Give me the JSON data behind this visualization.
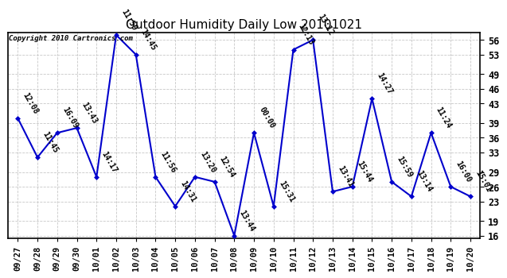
{
  "title": "Outdoor Humidity Daily Low 20101021",
  "copyright": "Copyright 2010 Cartronics.com",
  "x_labels": [
    "09/27",
    "09/28",
    "09/29",
    "09/30",
    "10/01",
    "10/02",
    "10/03",
    "10/04",
    "10/05",
    "10/06",
    "10/07",
    "10/08",
    "10/09",
    "10/10",
    "10/11",
    "10/12",
    "10/13",
    "10/14",
    "10/15",
    "10/16",
    "10/17",
    "10/18",
    "10/19",
    "10/20"
  ],
  "y_values": [
    40,
    32,
    37,
    38,
    28,
    57,
    53,
    28,
    22,
    28,
    27,
    16,
    37,
    22,
    54,
    56,
    25,
    26,
    44,
    27,
    24,
    37,
    26,
    24
  ],
  "time_labels": [
    "12:08",
    "11:45",
    "16:09",
    "13:43",
    "14:17",
    "11:59",
    "14:45",
    "11:56",
    "14:31",
    "13:20",
    "12:54",
    "13:44",
    "00:00",
    "15:31",
    "12:13",
    "13:12",
    "13:41",
    "15:44",
    "14:27",
    "15:59",
    "13:14",
    "11:24",
    "16:00",
    "15:01"
  ],
  "ylim_min": 16,
  "ylim_max": 57,
  "y_ticks": [
    16,
    19,
    23,
    26,
    29,
    33,
    36,
    39,
    43,
    46,
    49,
    53,
    56
  ],
  "line_color": "#0000cc",
  "marker_color": "#0000cc",
  "bg_color": "#ffffff",
  "grid_color": "#c8c8c8",
  "title_fontsize": 11,
  "label_fontsize": 7,
  "tick_fontsize": 8.5,
  "xtick_fontsize": 7.5,
  "copyright_fontsize": 6.5
}
